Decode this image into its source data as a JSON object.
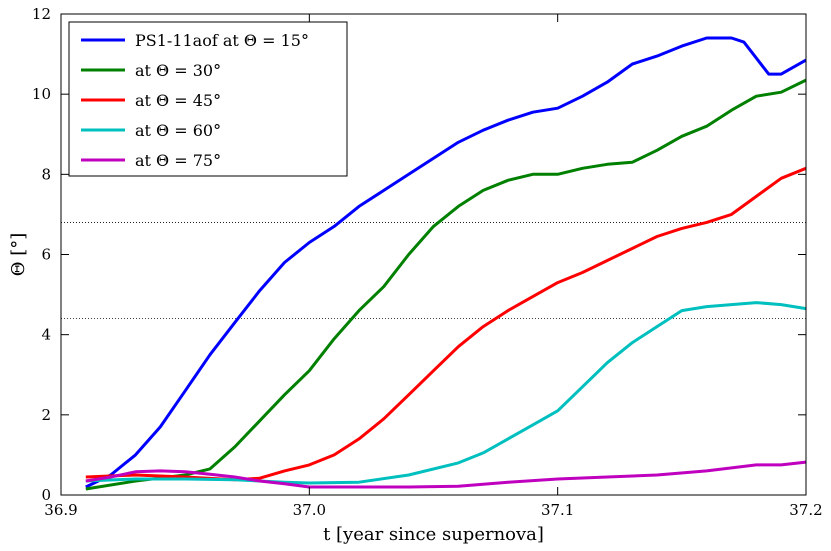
{
  "chart_data": {
    "type": "line",
    "title": "",
    "xlabel": "t [year since supernova]",
    "ylabel": "Θ [°]",
    "xlim": [
      36.9,
      37.2
    ],
    "ylim": [
      0,
      12
    ],
    "xticks": [
      36.9,
      37.0,
      37.1,
      37.2
    ],
    "xtick_labels": [
      "36.9",
      "37.0",
      "37.1",
      "37.2"
    ],
    "yticks": [
      0,
      2,
      4,
      6,
      8,
      10,
      12
    ],
    "ytick_labels": [
      "0",
      "2",
      "4",
      "6",
      "8",
      "10",
      "12"
    ],
    "hlines": [
      6.8,
      4.4
    ],
    "legend_position": "top-left",
    "series": [
      {
        "name": "PS1-11aof at Θ = 15°",
        "color": "#0000ff",
        "points": [
          [
            36.91,
            0.2
          ],
          [
            36.92,
            0.5
          ],
          [
            36.93,
            1.0
          ],
          [
            36.94,
            1.7
          ],
          [
            36.95,
            2.6
          ],
          [
            36.96,
            3.5
          ],
          [
            36.97,
            4.3
          ],
          [
            36.98,
            5.1
          ],
          [
            36.99,
            5.8
          ],
          [
            37.0,
            6.3
          ],
          [
            37.01,
            6.7
          ],
          [
            37.02,
            7.2
          ],
          [
            37.03,
            7.6
          ],
          [
            37.04,
            8.0
          ],
          [
            37.05,
            8.4
          ],
          [
            37.06,
            8.8
          ],
          [
            37.07,
            9.1
          ],
          [
            37.08,
            9.35
          ],
          [
            37.09,
            9.55
          ],
          [
            37.1,
            9.65
          ],
          [
            37.11,
            9.95
          ],
          [
            37.12,
            10.3
          ],
          [
            37.13,
            10.75
          ],
          [
            37.14,
            10.95
          ],
          [
            37.15,
            11.2
          ],
          [
            37.16,
            11.4
          ],
          [
            37.17,
            11.4
          ],
          [
            37.175,
            11.3
          ],
          [
            37.18,
            10.9
          ],
          [
            37.185,
            10.5
          ],
          [
            37.19,
            10.5
          ],
          [
            37.2,
            10.85
          ]
        ]
      },
      {
        "name": "at Θ = 30°",
        "color": "#008000",
        "points": [
          [
            36.91,
            0.15
          ],
          [
            36.93,
            0.35
          ],
          [
            36.95,
            0.5
          ],
          [
            36.96,
            0.65
          ],
          [
            36.97,
            1.2
          ],
          [
            36.98,
            1.85
          ],
          [
            36.99,
            2.5
          ],
          [
            37.0,
            3.1
          ],
          [
            37.01,
            3.9
          ],
          [
            37.02,
            4.6
          ],
          [
            37.03,
            5.2
          ],
          [
            37.04,
            6.0
          ],
          [
            37.05,
            6.7
          ],
          [
            37.06,
            7.2
          ],
          [
            37.07,
            7.6
          ],
          [
            37.08,
            7.85
          ],
          [
            37.09,
            8.0
          ],
          [
            37.1,
            8.0
          ],
          [
            37.11,
            8.15
          ],
          [
            37.12,
            8.25
          ],
          [
            37.13,
            8.3
          ],
          [
            37.14,
            8.6
          ],
          [
            37.15,
            8.95
          ],
          [
            37.16,
            9.2
          ],
          [
            37.17,
            9.6
          ],
          [
            37.18,
            9.95
          ],
          [
            37.19,
            10.05
          ],
          [
            37.2,
            10.35
          ]
        ]
      },
      {
        "name": "at Θ = 45°",
        "color": "#ff0000",
        "points": [
          [
            36.91,
            0.45
          ],
          [
            36.93,
            0.5
          ],
          [
            36.95,
            0.45
          ],
          [
            36.97,
            0.38
          ],
          [
            36.98,
            0.42
          ],
          [
            36.99,
            0.6
          ],
          [
            37.0,
            0.75
          ],
          [
            37.01,
            1.0
          ],
          [
            37.02,
            1.4
          ],
          [
            37.03,
            1.9
          ],
          [
            37.04,
            2.5
          ],
          [
            37.05,
            3.1
          ],
          [
            37.06,
            3.7
          ],
          [
            37.07,
            4.2
          ],
          [
            37.08,
            4.6
          ],
          [
            37.09,
            4.95
          ],
          [
            37.1,
            5.3
          ],
          [
            37.11,
            5.55
          ],
          [
            37.12,
            5.85
          ],
          [
            37.13,
            6.15
          ],
          [
            37.14,
            6.45
          ],
          [
            37.15,
            6.65
          ],
          [
            37.16,
            6.8
          ],
          [
            37.17,
            7.0
          ],
          [
            37.18,
            7.45
          ],
          [
            37.19,
            7.9
          ],
          [
            37.2,
            8.15
          ]
        ]
      },
      {
        "name": "at Θ = 60°",
        "color": "#00bfbf",
        "points": [
          [
            36.91,
            0.35
          ],
          [
            36.93,
            0.4
          ],
          [
            36.95,
            0.4
          ],
          [
            36.97,
            0.38
          ],
          [
            36.99,
            0.32
          ],
          [
            37.0,
            0.3
          ],
          [
            37.02,
            0.32
          ],
          [
            37.04,
            0.5
          ],
          [
            37.06,
            0.8
          ],
          [
            37.07,
            1.05
          ],
          [
            37.08,
            1.4
          ],
          [
            37.09,
            1.75
          ],
          [
            37.1,
            2.1
          ],
          [
            37.11,
            2.7
          ],
          [
            37.12,
            3.3
          ],
          [
            37.13,
            3.8
          ],
          [
            37.14,
            4.2
          ],
          [
            37.15,
            4.6
          ],
          [
            37.16,
            4.7
          ],
          [
            37.17,
            4.75
          ],
          [
            37.18,
            4.8
          ],
          [
            37.19,
            4.75
          ],
          [
            37.2,
            4.65
          ]
        ]
      },
      {
        "name": "at Θ = 75°",
        "color": "#bf00bf",
        "points": [
          [
            36.91,
            0.35
          ],
          [
            36.92,
            0.45
          ],
          [
            36.93,
            0.58
          ],
          [
            36.94,
            0.6
          ],
          [
            36.95,
            0.58
          ],
          [
            36.96,
            0.52
          ],
          [
            36.97,
            0.45
          ],
          [
            36.98,
            0.35
          ],
          [
            36.99,
            0.28
          ],
          [
            37.0,
            0.2
          ],
          [
            37.02,
            0.2
          ],
          [
            37.04,
            0.2
          ],
          [
            37.06,
            0.22
          ],
          [
            37.08,
            0.32
          ],
          [
            37.1,
            0.4
          ],
          [
            37.12,
            0.45
          ],
          [
            37.14,
            0.5
          ],
          [
            37.16,
            0.6
          ],
          [
            37.18,
            0.75
          ],
          [
            37.19,
            0.75
          ],
          [
            37.2,
            0.82
          ]
        ]
      }
    ]
  }
}
